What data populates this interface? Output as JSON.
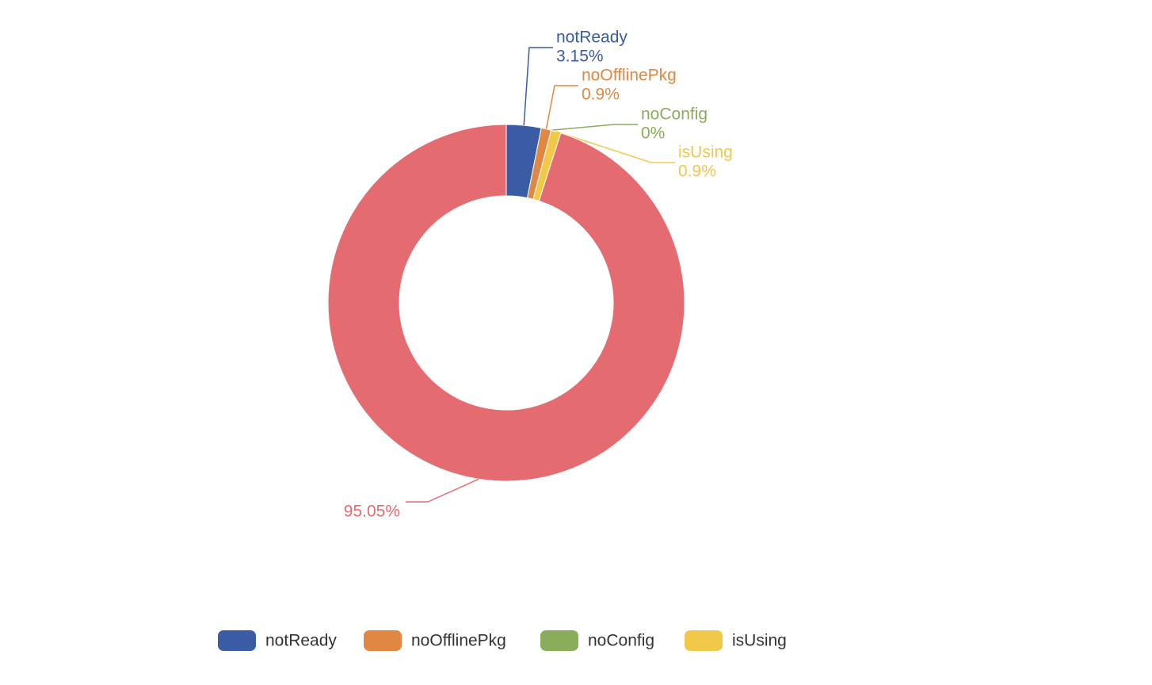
{
  "chart_data": {
    "type": "donut",
    "categories": [
      "notReady",
      "noOfflinePkg",
      "noConfig",
      "isUsing",
      null
    ],
    "values": [
      3.15,
      0.9,
      0,
      0.9,
      95.05
    ],
    "value_labels": [
      "3.15%",
      "0.9%",
      "0%",
      "0.9%",
      "95.05%"
    ],
    "colors": [
      "#3a5ca5",
      "#e08843",
      "#89ad5a",
      "#f2c84b",
      "#e46b6f"
    ],
    "legend": "bottom"
  }
}
